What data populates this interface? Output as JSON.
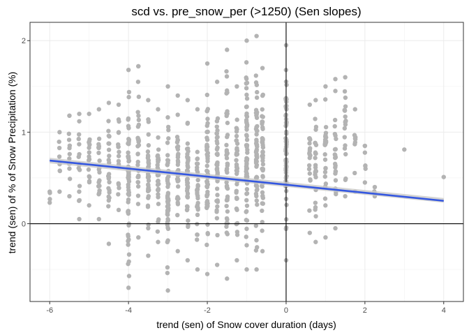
{
  "chart_data": {
    "type": "scatter",
    "title": "scd vs. pre_snow_per (>1250) (Sen slopes)",
    "xlabel": "trend (sen) of Snow cover duration (days)",
    "ylabel": "trend (sen) of % of Snow Precipitation (%)",
    "xlim": [
      -6.5,
      4.5
    ],
    "ylim": [
      -0.85,
      2.2
    ],
    "xticks": [
      -6,
      -4,
      -2,
      0,
      2,
      4
    ],
    "xtick_labels": [
      "-6",
      "-4",
      "-2",
      "0",
      "2",
      "4"
    ],
    "yticks": [
      0,
      1,
      2
    ],
    "ytick_labels": [
      "0",
      "1",
      "2"
    ],
    "grid": true,
    "reference_lines": {
      "x": 0,
      "y": 0
    },
    "point_color": "#b3b3b3",
    "line_color": "#3457e0",
    "band_color": "#c8c8c8",
    "trend_line": {
      "x": [
        -6,
        4
      ],
      "y": [
        0.69,
        0.25
      ]
    },
    "confidence_band": {
      "x": [
        -6,
        4
      ],
      "lower": [
        0.66,
        0.23
      ],
      "upper": [
        0.72,
        0.28
      ]
    },
    "columns": [
      {
        "x": -6.0,
        "ymin": 0.23,
        "ymax": 0.35,
        "n": 2
      },
      {
        "x": -5.75,
        "ymin": 0.35,
        "ymax": 1.0,
        "n": 6
      },
      {
        "x": -5.5,
        "ymin": 0.3,
        "ymax": 1.18,
        "n": 10
      },
      {
        "x": -5.25,
        "ymin": 0.05,
        "ymax": 1.2,
        "n": 14
      },
      {
        "x": -5.0,
        "ymin": 0.2,
        "ymax": 1.2,
        "n": 14
      },
      {
        "x": -4.75,
        "ymin": 0.05,
        "ymax": 1.25,
        "n": 18
      },
      {
        "x": -4.5,
        "ymin": -0.22,
        "ymax": 1.32,
        "n": 22
      },
      {
        "x": -4.25,
        "ymin": 0.15,
        "ymax": 1.3,
        "n": 16
      },
      {
        "x": -4.0,
        "ymin": -0.7,
        "ymax": 1.68,
        "n": 55
      },
      {
        "x": -3.75,
        "ymin": -0.15,
        "ymax": 1.72,
        "n": 30
      },
      {
        "x": -3.5,
        "ymin": -0.35,
        "ymax": 1.35,
        "n": 34
      },
      {
        "x": -3.25,
        "ymin": -0.2,
        "ymax": 1.25,
        "n": 28
      },
      {
        "x": -3.0,
        "ymin": -0.73,
        "ymax": 1.5,
        "n": 50
      },
      {
        "x": -2.75,
        "ymin": -0.3,
        "ymax": 1.4,
        "n": 32
      },
      {
        "x": -2.5,
        "ymin": -0.4,
        "ymax": 1.35,
        "n": 40
      },
      {
        "x": -2.25,
        "ymin": -0.5,
        "ymax": 1.25,
        "n": 30
      },
      {
        "x": -2.0,
        "ymin": -0.55,
        "ymax": 1.75,
        "n": 55
      },
      {
        "x": -1.75,
        "ymin": -0.45,
        "ymax": 1.55,
        "n": 40
      },
      {
        "x": -1.5,
        "ymin": -0.6,
        "ymax": 1.9,
        "n": 45
      },
      {
        "x": -1.25,
        "ymin": -0.4,
        "ymax": 1.5,
        "n": 40
      },
      {
        "x": -1.0,
        "ymin": -0.5,
        "ymax": 2.0,
        "n": 60
      },
      {
        "x": -0.75,
        "ymin": -0.5,
        "ymax": 2.05,
        "n": 55
      },
      {
        "x": -0.6,
        "ymin": -0.3,
        "ymax": 1.7,
        "n": 45
      },
      {
        "x": 0.0,
        "ymin": -0.4,
        "ymax": 1.95,
        "n": 70
      },
      {
        "x": 0.6,
        "ymin": -0.1,
        "ymax": 1.3,
        "n": 18
      },
      {
        "x": 0.75,
        "ymin": -0.2,
        "ymax": 1.35,
        "n": 22
      },
      {
        "x": 1.0,
        "ymin": -0.15,
        "ymax": 1.5,
        "n": 25
      },
      {
        "x": 1.25,
        "ymin": -0.05,
        "ymax": 1.45,
        "n": 22
      },
      {
        "x": 1.5,
        "ymin": 0.3,
        "ymax": 1.6,
        "n": 18
      },
      {
        "x": 1.75,
        "ymin": 0.35,
        "ymax": 1.25,
        "n": 8
      },
      {
        "x": 2.0,
        "ymin": 0.45,
        "ymax": 0.85,
        "n": 4
      },
      {
        "x": 2.25,
        "ymin": 0.3,
        "ymax": 0.4,
        "n": 2
      }
    ],
    "points": [
      {
        "x": 3.0,
        "y": 0.81
      },
      {
        "x": 4.0,
        "y": 0.51
      },
      {
        "x": 2.0,
        "y": 0.85
      },
      {
        "x": 1.25,
        "y": 1.58
      },
      {
        "x": -5.5,
        "y": 1.18
      },
      {
        "x": -3.75,
        "y": 1.72
      }
    ]
  }
}
